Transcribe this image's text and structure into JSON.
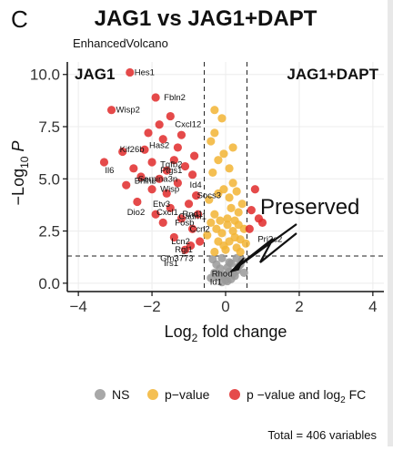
{
  "panel_letter": "C",
  "chart_data": {
    "type": "scatter",
    "title": "JAG1 vs JAG1+DAPT",
    "subtitle": "EnhancedVolcano",
    "xlabel": "Log2 fold change",
    "ylabel": "−Log10 P",
    "xlim": [
      -4.3,
      4.3
    ],
    "ylim": [
      -0.4,
      10.6
    ],
    "xticks": [
      "−4",
      "−2",
      "0",
      "2",
      "4"
    ],
    "xtick_values": [
      -4,
      -2,
      0,
      2,
      4
    ],
    "yticks": [
      "0.0",
      "2.5",
      "5.0",
      "7.5",
      "10.0"
    ],
    "ytick_values": [
      0,
      2.5,
      5.0,
      7.5,
      10.0
    ],
    "grid": true,
    "legend_position": "bottom",
    "fc_cutoffs": [
      -0.58,
      0.58
    ],
    "p_cutoff_log10": 1.3,
    "corner_labels": {
      "left": "JAG1",
      "right": "JAG1+DAPT"
    },
    "annotation": {
      "text": "Preserved",
      "x": 0.1,
      "y": 0.4
    },
    "total_caption": "Total = 406 variables",
    "series": [
      {
        "name": "NS",
        "color": "#999999",
        "points": [
          [
            -0.1,
            0.05
          ],
          [
            0.05,
            0.1
          ],
          [
            0.15,
            0.2
          ],
          [
            -0.2,
            0.3
          ],
          [
            0.25,
            0.35
          ],
          [
            -0.3,
            0.5
          ],
          [
            0.1,
            0.55
          ],
          [
            0.3,
            0.6
          ],
          [
            -0.15,
            0.7
          ],
          [
            0.35,
            0.8
          ],
          [
            0.0,
            0.15
          ],
          [
            0.2,
            0.45
          ],
          [
            -0.05,
            0.4
          ],
          [
            0.4,
            0.9
          ],
          [
            -0.25,
            0.9
          ],
          [
            0.1,
            1.0
          ],
          [
            0.45,
            1.1
          ],
          [
            -0.35,
            1.15
          ],
          [
            0.3,
            1.2
          ],
          [
            0.05,
            0.75
          ],
          [
            -0.4,
            0.25
          ],
          [
            0.5,
            0.5
          ],
          [
            0.15,
            0.95
          ],
          [
            -0.1,
            1.2
          ]
        ]
      },
      {
        "name": "p−value",
        "color": "#F2B434",
        "points": [
          [
            -0.3,
            1.5
          ],
          [
            -0.2,
            2.0
          ],
          [
            -0.1,
            2.4
          ],
          [
            0.0,
            1.6
          ],
          [
            0.1,
            2.0
          ],
          [
            0.2,
            2.5
          ],
          [
            0.3,
            1.7
          ],
          [
            0.4,
            2.1
          ],
          [
            0.5,
            2.6
          ],
          [
            -0.4,
            2.9
          ],
          [
            -0.3,
            3.3
          ],
          [
            -0.15,
            3.0
          ],
          [
            0.05,
            3.1
          ],
          [
            0.15,
            3.6
          ],
          [
            0.25,
            3.0
          ],
          [
            0.35,
            3.4
          ],
          [
            0.45,
            3.8
          ],
          [
            -0.45,
            4.0
          ],
          [
            -0.2,
            4.3
          ],
          [
            -0.05,
            4.5
          ],
          [
            0.1,
            4.1
          ],
          [
            0.2,
            4.8
          ],
          [
            0.3,
            4.4
          ],
          [
            -0.35,
            5.3
          ],
          [
            -0.2,
            5.9
          ],
          [
            -0.05,
            6.2
          ],
          [
            0.1,
            5.5
          ],
          [
            0.2,
            6.5
          ],
          [
            -0.4,
            6.8
          ],
          [
            -0.3,
            7.2
          ],
          [
            -0.1,
            7.9
          ],
          [
            -0.3,
            8.3
          ],
          [
            0.05,
            2.8
          ],
          [
            -0.5,
            2.3
          ],
          [
            0.4,
            1.5
          ],
          [
            0.55,
            1.9
          ],
          [
            -0.05,
            1.8
          ],
          [
            0.25,
            2.2
          ],
          [
            0.35,
            2.8
          ],
          [
            -0.25,
            2.6
          ]
        ]
      },
      {
        "name": "p −value and log2 FC",
        "color": "#E02A2A",
        "points": [
          [
            -2.6,
            10.1
          ],
          [
            -3.1,
            8.3
          ],
          [
            -1.9,
            8.9
          ],
          [
            -1.8,
            7.6
          ],
          [
            -1.5,
            8.0
          ],
          [
            -2.8,
            6.3
          ],
          [
            -3.3,
            5.8
          ],
          [
            -2.2,
            6.4
          ],
          [
            -1.7,
            6.9
          ],
          [
            -1.2,
            7.1
          ],
          [
            -2.0,
            5.8
          ],
          [
            -1.4,
            5.9
          ],
          [
            -1.6,
            5.4
          ],
          [
            -2.5,
            5.5
          ],
          [
            -2.3,
            5.1
          ],
          [
            -1.8,
            5.0
          ],
          [
            -1.1,
            5.6
          ],
          [
            -0.9,
            5.2
          ],
          [
            -1.3,
            4.8
          ],
          [
            -2.0,
            4.5
          ],
          [
            -1.6,
            4.3
          ],
          [
            -2.4,
            3.9
          ],
          [
            -1.5,
            3.6
          ],
          [
            -1.9,
            3.3
          ],
          [
            -1.0,
            3.8
          ],
          [
            -0.8,
            4.2
          ],
          [
            -1.2,
            3.1
          ],
          [
            -1.7,
            2.9
          ],
          [
            -0.9,
            2.6
          ],
          [
            -1.4,
            2.2
          ],
          [
            -0.7,
            2.0
          ],
          [
            -1.1,
            1.6
          ],
          [
            -0.75,
            3.3
          ],
          [
            -0.95,
            1.8
          ],
          [
            -2.1,
            7.2
          ],
          [
            -1.3,
            6.5
          ],
          [
            -2.7,
            4.7
          ],
          [
            -0.85,
            6.1
          ],
          [
            0.9,
            3.1
          ],
          [
            0.65,
            2.6
          ],
          [
            1.0,
            2.9
          ],
          [
            0.7,
            3.5
          ],
          [
            0.8,
            4.5
          ]
        ]
      }
    ],
    "point_labels": [
      {
        "text": "Hes1",
        "x": -2.6,
        "y": 10.1
      },
      {
        "text": "Fbln2",
        "x": -1.8,
        "y": 8.9
      },
      {
        "text": "Wisp2",
        "x": -3.1,
        "y": 8.3
      },
      {
        "text": "Cxcl12",
        "x": -1.5,
        "y": 7.6
      },
      {
        "text": "Has2",
        "x": -2.2,
        "y": 6.6
      },
      {
        "text": "Kif26b",
        "x": -3.0,
        "y": 6.4
      },
      {
        "text": "Tgfb2",
        "x": -1.9,
        "y": 5.7
      },
      {
        "text": "Il6",
        "x": -3.4,
        "y": 5.4
      },
      {
        "text": "Serpina3n",
        "x": -2.5,
        "y": 5.0
      },
      {
        "text": "Ptgs1",
        "x": -1.9,
        "y": 5.4
      },
      {
        "text": "Id4",
        "x": -1.1,
        "y": 4.7
      },
      {
        "text": "Bhlhe",
        "x": -2.6,
        "y": 4.9
      },
      {
        "text": "Wisp",
        "x": -1.9,
        "y": 4.5
      },
      {
        "text": "Socs3",
        "x": -0.9,
        "y": 4.2
      },
      {
        "text": "Etv3",
        "x": -2.1,
        "y": 3.8
      },
      {
        "text": "Dio2",
        "x": -2.8,
        "y": 3.4
      },
      {
        "text": "Cxcl1",
        "x": -2.0,
        "y": 3.4
      },
      {
        "text": "Cadm1",
        "x": -1.4,
        "y": 3.2
      },
      {
        "text": "Rnd1",
        "x": -1.3,
        "y": 3.3
      },
      {
        "text": "Fosb",
        "x": -1.5,
        "y": 2.9
      },
      {
        "text": "Ccn2",
        "x": -1.1,
        "y": 2.6
      },
      {
        "text": "Pri2c2",
        "x": 0.75,
        "y": 2.1
      },
      {
        "text": "Lcn2",
        "x": -1.6,
        "y": 2.0
      },
      {
        "text": "Rgl1",
        "x": -1.5,
        "y": 1.6
      },
      {
        "text": "Gm3773",
        "x": -1.9,
        "y": 1.2
      },
      {
        "text": "Irs1",
        "x": -1.8,
        "y": 0.95
      },
      {
        "text": "Rhou",
        "x": -0.5,
        "y": 0.45
      },
      {
        "text": "Id1",
        "x": -0.55,
        "y": 0.05
      }
    ]
  },
  "legend": {
    "items": [
      {
        "label": "NS",
        "color": "#999999"
      },
      {
        "label": "p−value",
        "color": "#F2B434"
      },
      {
        "label": "p −value and log",
        "sub": "2",
        "suffix": " FC",
        "color": "#E02A2A"
      }
    ]
  }
}
